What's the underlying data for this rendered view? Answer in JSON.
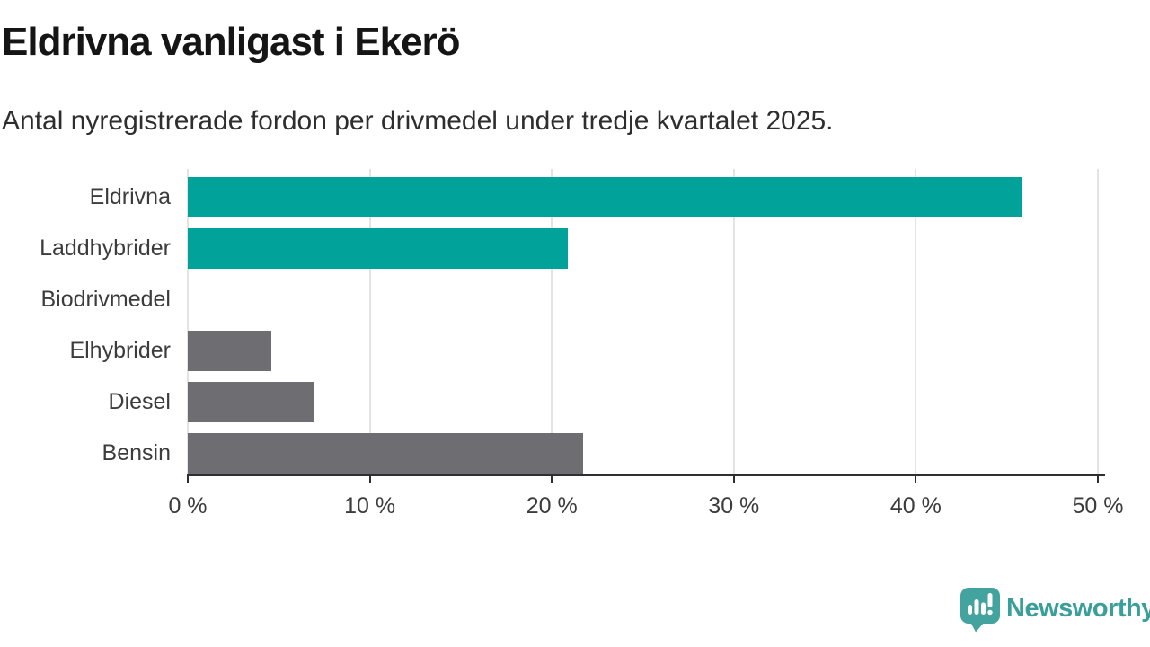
{
  "header": {
    "title": "Eldrivna vanligast i Ekerö",
    "subtitle": "Antal nyregistrerade fordon per drivmedel under tredje kvartalet 2025."
  },
  "chart_data": {
    "type": "bar",
    "orientation": "horizontal",
    "title": "Eldrivna vanligast i Ekerö",
    "xlabel": "",
    "ylabel": "",
    "unit": "%",
    "categories": [
      "Eldrivna",
      "Laddhybrider",
      "Biodrivmedel",
      "Elhybrider",
      "Diesel",
      "Bensin"
    ],
    "values": [
      45.8,
      20.9,
      0,
      4.6,
      6.9,
      21.7
    ],
    "bar_colors": [
      "#00a299",
      "#00a299",
      "#6d6d72",
      "#6d6d72",
      "#6d6d72",
      "#6d6d72"
    ],
    "xlim": [
      0,
      50
    ],
    "x_ticks": [
      0,
      10,
      20,
      30,
      40,
      50
    ],
    "x_tick_labels": [
      "0 %",
      "10 %",
      "20 %",
      "30 %",
      "40 %",
      "50 %"
    ],
    "grid": "vertical-gridlines-on",
    "legend": "none"
  },
  "footer": {
    "brand": "Newsworthy"
  },
  "colors": {
    "teal": "#00a299",
    "gray": "#6d6d72",
    "axis": "#2f2f2f",
    "gridline": "#e3e3e3",
    "brand_text": "#3a9f9b",
    "brand_icon": "#43a49f"
  }
}
